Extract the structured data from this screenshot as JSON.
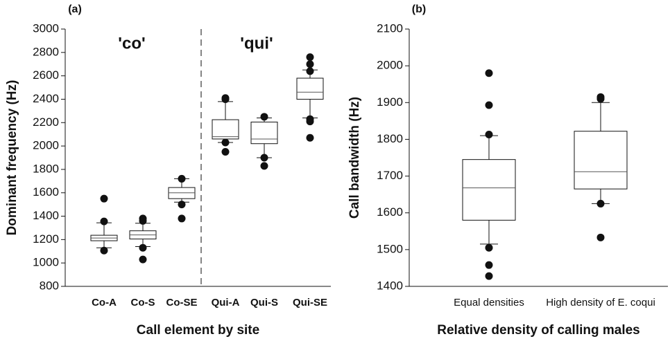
{
  "chart_data": [
    {
      "type": "box",
      "panel_label": "(a)",
      "ylabel": "Dominant frequency (Hz)",
      "xlabel": "Call element by site",
      "categories": [
        "Co-A",
        "Co-S",
        "Co-SE",
        "Qui-A",
        "Qui-S",
        "Qui-SE"
      ],
      "boxes": [
        {
          "min": 1130,
          "q1": 1190,
          "median": 1213,
          "q3": 1237,
          "max": 1343,
          "outliers": [
            1550,
            1355,
            1106
          ]
        },
        {
          "min": 1140,
          "q1": 1205,
          "median": 1240,
          "q3": 1275,
          "max": 1340,
          "outliers": [
            1380,
            1360,
            1130,
            1030
          ]
        },
        {
          "min": 1520,
          "q1": 1550,
          "median": 1600,
          "q3": 1645,
          "max": 1720,
          "outliers": [
            1720,
            1500,
            1380
          ]
        },
        {
          "min": 2030,
          "q1": 2060,
          "median": 2080,
          "q3": 2225,
          "max": 2380,
          "outliers": [
            2410,
            2400,
            2030,
            1950
          ]
        },
        {
          "min": 1900,
          "q1": 2020,
          "median": 2060,
          "q3": 2205,
          "max": 2240,
          "outliers": [
            2250,
            1900,
            1830
          ]
        },
        {
          "min": 2240,
          "q1": 2400,
          "median": 2460,
          "q3": 2580,
          "max": 2650,
          "outliers": [
            2760,
            2700,
            2640,
            2230,
            2210,
            2070
          ]
        }
      ],
      "annotations": [
        "'co'",
        "'qui'"
      ],
      "ylim": [
        800,
        3000
      ],
      "yticks": [
        800,
        1000,
        1200,
        1400,
        1600,
        1800,
        2000,
        2200,
        2400,
        2600,
        2800,
        3000
      ]
    },
    {
      "type": "box",
      "panel_label": "(b)",
      "ylabel": "Call bandwidth (Hz)",
      "xlabel": "Relative density of calling males",
      "categories": [
        "Equal densities",
        "High density of E. coqui"
      ],
      "boxes": [
        {
          "min": 1515,
          "q1": 1580,
          "median": 1668,
          "q3": 1745,
          "max": 1810,
          "outliers": [
            1980,
            1893,
            1813,
            1505,
            1458,
            1428
          ]
        },
        {
          "min": 1625,
          "q1": 1665,
          "median": 1712,
          "q3": 1822,
          "max": 1900,
          "outliers": [
            1915,
            1910,
            1625,
            1533
          ]
        }
      ],
      "ylim": [
        1400,
        2100
      ],
      "yticks": [
        1400,
        1500,
        1600,
        1700,
        1800,
        1900,
        2000,
        2100
      ]
    }
  ]
}
